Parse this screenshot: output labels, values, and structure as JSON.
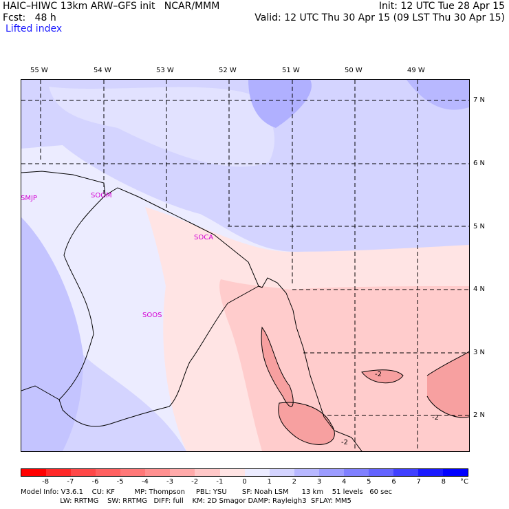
{
  "header": {
    "title_left": "HAIC–HIWC 13km ARW–GFS init   NCAR/MMM",
    "init_time": "Init: 12 UTC Tue 28 Apr 15",
    "fcst_label": "Fcst:   48 h",
    "valid_time": "Valid: 12 UTC Thu 30 Apr 15 (09 LST Thu 30 Apr 15)",
    "field_name": "Lifted index"
  },
  "map": {
    "lon_labels": [
      "55 W",
      "54 W",
      "53 W",
      "52 W",
      "51 W",
      "50 W",
      "49 W"
    ],
    "lat_labels": [
      "7 N",
      "6 N",
      "5 N",
      "4 N",
      "3 N",
      "2 N"
    ],
    "stations": [
      "SMJP",
      "SOGM",
      "SOCA",
      "SOOS"
    ],
    "contour_labels": [
      "-2",
      "-2",
      "-2"
    ]
  },
  "colorbar": {
    "ticks": [
      "-8",
      "-7",
      "-6",
      "-5",
      "-4",
      "-3",
      "-2",
      "-1",
      "0",
      "1",
      "2",
      "3",
      "4",
      "5",
      "6",
      "7",
      "8"
    ],
    "unit": "°C",
    "colors": [
      "#ff0000",
      "#ff2828",
      "#ff4848",
      "#ff6060",
      "#ff7878",
      "#ff9090",
      "#ffaaaa",
      "#ffc8c8",
      "#ffe4e4",
      "#ececff",
      "#d4d4ff",
      "#b8b8ff",
      "#9c9cff",
      "#8080ff",
      "#6464ff",
      "#4040ff",
      "#1a1aff",
      "#0000ff"
    ]
  },
  "footer": {
    "line1": "Model Info: V3.6.1    CU: KF         MP: Thompson     PBL: YSU       SF: Noah LSM      13 km    51 levels   60 sec",
    "line2": "                  LW: RRTMG    SW: RRTMG   DIFF: full    KM: 2D Smagor DAMP: Rayleigh3  SFLAY: MM5"
  }
}
